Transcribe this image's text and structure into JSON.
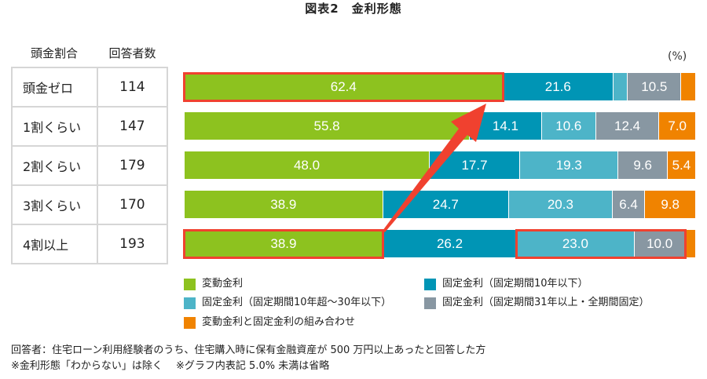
{
  "title": "図表2　金利形態",
  "table": {
    "headers": [
      "頭金割合",
      "回答者数"
    ],
    "rows": [
      {
        "label": "頭金ゼロ",
        "count": "114"
      },
      {
        "label": "1割くらい",
        "count": "147"
      },
      {
        "label": "2割くらい",
        "count": "179"
      },
      {
        "label": "3割くらい",
        "count": "170"
      },
      {
        "label": "4割以上",
        "count": "193"
      }
    ]
  },
  "unit_label": "(%)",
  "colors": {
    "variable": "#8dc21f",
    "fixed_10_or_less": "#0095b5",
    "fixed_10_to_30": "#4db4c8",
    "fixed_31_plus": "#8897a2",
    "mixed": "#f08300",
    "highlight": "#f0412f"
  },
  "legend": [
    {
      "label": "変動金利",
      "color": "#8dc21f"
    },
    {
      "label": "固定金利（固定期間10年以下）",
      "color": "#0095b5"
    },
    {
      "label": "固定金利（固定期間10年超～30年以下）",
      "color": "#4db4c8"
    },
    {
      "label": "固定金利（固定期間31年以上・全期間固定）",
      "color": "#8897a2"
    },
    {
      "label": "変動金利と固定金利の組み合わせ",
      "color": "#f08300"
    }
  ],
  "footer": {
    "line1": "回答者：住宅ローン利用経験者のうち、住宅購入時に保有金融資産が 500 万円以上あったと回答した方",
    "line2": "※金利形態「わからない」は除く　 ※グラフ内表記 5.0% 未満は省略"
  },
  "chart_data": {
    "type": "bar",
    "orientation": "horizontal",
    "stacked": true,
    "title": "図表2　金利形態",
    "xlabel": "",
    "ylabel": "頭金割合",
    "unit": "%",
    "xlim": [
      0,
      100
    ],
    "grid": false,
    "legend_position": "bottom",
    "categories": [
      "頭金ゼロ",
      "1割くらい",
      "2割くらい",
      "3割くらい",
      "4割以上"
    ],
    "respondents": [
      114,
      147,
      179,
      170,
      193
    ],
    "series": [
      {
        "name": "変動金利",
        "color": "#8dc21f",
        "values": [
          62.4,
          55.8,
          48.0,
          38.9,
          38.9
        ],
        "labels": [
          "62.4",
          "55.8",
          "48.0",
          "38.9",
          "38.9"
        ]
      },
      {
        "name": "固定金利（固定期間10年以下）",
        "color": "#0095b5",
        "values": [
          21.6,
          14.1,
          17.7,
          24.7,
          26.2
        ],
        "labels": [
          "21.6",
          "14.1",
          "17.7",
          "24.7",
          "26.2"
        ]
      },
      {
        "name": "固定金利（固定期間10年超～30年以下）",
        "color": "#4db4c8",
        "values": [
          2.8,
          10.6,
          19.3,
          20.3,
          23.0
        ],
        "labels": [
          "",
          "10.6",
          "19.3",
          "20.3",
          "23.0"
        ]
      },
      {
        "name": "固定金利（固定期間31年以上・全期間固定）",
        "color": "#8897a2",
        "values": [
          10.5,
          12.4,
          9.6,
          6.4,
          10.0
        ],
        "labels": [
          "10.5",
          "12.4",
          "9.6",
          "6.4",
          "10.0"
        ]
      },
      {
        "name": "変動金利と固定金利の組み合わせ",
        "color": "#f08300",
        "values": [
          2.7,
          7.0,
          5.4,
          9.8,
          1.9
        ],
        "labels": [
          "",
          "7.0",
          "5.4",
          "9.8",
          ""
        ]
      }
    ],
    "annotations": [
      "Red box around 頭金ゼロ 変動金利 segment (62.4)",
      "Red box around 4割以上 変動金利 segment (38.9)",
      "Red box around 4割以上 固定金利 10年超～30年以下 and 31年以上 segments (23.0, 10.0)",
      "Red arrow from 4割以上 変動金利 (38.9) pointing up to 頭金ゼロ 変動金利 (62.4)"
    ]
  }
}
